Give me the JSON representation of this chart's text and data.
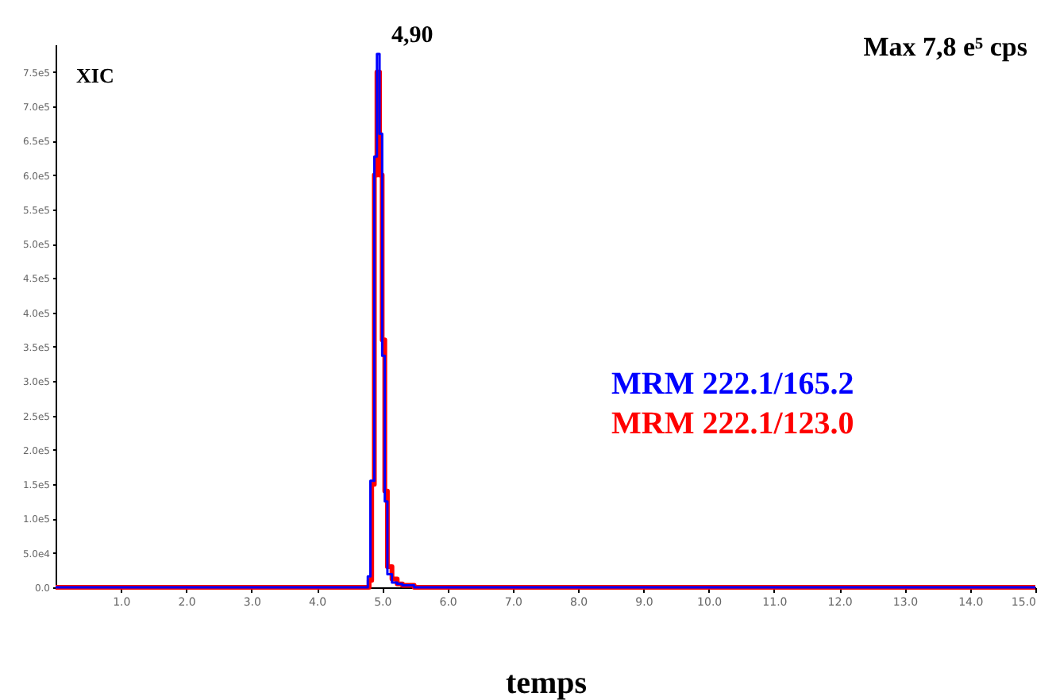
{
  "chart_data": {
    "type": "step",
    "xlabel": "temps",
    "annotations": [
      "XIC",
      "Max 7,8 e⁵ cps",
      {
        "text": "4,90",
        "x": 4.9,
        "y": 780000
      }
    ],
    "xlim": [
      0,
      15
    ],
    "ylim": [
      0,
      790000
    ],
    "xticks": [
      {
        "value": 1,
        "label": "1.0"
      },
      {
        "value": 2,
        "label": "2.0"
      },
      {
        "value": 3,
        "label": "3.0"
      },
      {
        "value": 4,
        "label": "4.0"
      },
      {
        "value": 5,
        "label": "5.0"
      },
      {
        "value": 6,
        "label": "6.0"
      },
      {
        "value": 7,
        "label": "7.0"
      },
      {
        "value": 8,
        "label": "8.0"
      },
      {
        "value": 9,
        "label": "9.0"
      },
      {
        "value": 10,
        "label": "10.0"
      },
      {
        "value": 11,
        "label": "11.0"
      },
      {
        "value": 12,
        "label": "12.0"
      },
      {
        "value": 13,
        "label": "13.0"
      },
      {
        "value": 14,
        "label": "14.0"
      },
      {
        "value": 15,
        "label": "15.0"
      }
    ],
    "yticks": [
      {
        "value": 0,
        "label": "0.0"
      },
      {
        "value": 50000,
        "label": "5.0e4"
      },
      {
        "value": 100000,
        "label": "1.0e5"
      },
      {
        "value": 150000,
        "label": "1.5e5"
      },
      {
        "value": 200000,
        "label": "2.0e5"
      },
      {
        "value": 250000,
        "label": "2.5e5"
      },
      {
        "value": 300000,
        "label": "3.0e5"
      },
      {
        "value": 350000,
        "label": "3.5e5"
      },
      {
        "value": 400000,
        "label": "4.0e5"
      },
      {
        "value": 450000,
        "label": "4.5e5"
      },
      {
        "value": 500000,
        "label": "5.0e5"
      },
      {
        "value": 550000,
        "label": "5.5e5"
      },
      {
        "value": 600000,
        "label": "6.0e5"
      },
      {
        "value": 650000,
        "label": "6.5e5"
      },
      {
        "value": 700000,
        "label": "7.0e5"
      },
      {
        "value": 750000,
        "label": "7.5e5"
      }
    ],
    "grid": false,
    "series": [
      {
        "name": "MRM 222.1/165.2",
        "color": "#0000ff",
        "x": [
          0,
          4.78,
          4.82,
          4.88,
          4.92,
          4.96,
          5.0,
          5.04,
          5.08,
          5.15,
          5.23,
          5.31,
          5.49,
          15
        ],
        "values": [
          0,
          16000,
          155000,
          627000,
          776000,
          660000,
          337000,
          125000,
          19000,
          7000,
          5000,
          3000,
          0,
          0
        ]
      },
      {
        "name": "MRM 222.1/123.0",
        "color": "#ff0000",
        "x": [
          0,
          4.8,
          4.84,
          4.88,
          4.92,
          4.96,
          5.0,
          5.04,
          5.08,
          5.15,
          5.23,
          5.31,
          5.49,
          15
        ],
        "values": [
          0,
          10000,
          150000,
          600000,
          750000,
          600000,
          360000,
          140000,
          30000,
          12000,
          5000,
          3000,
          0,
          0
        ]
      }
    ]
  }
}
